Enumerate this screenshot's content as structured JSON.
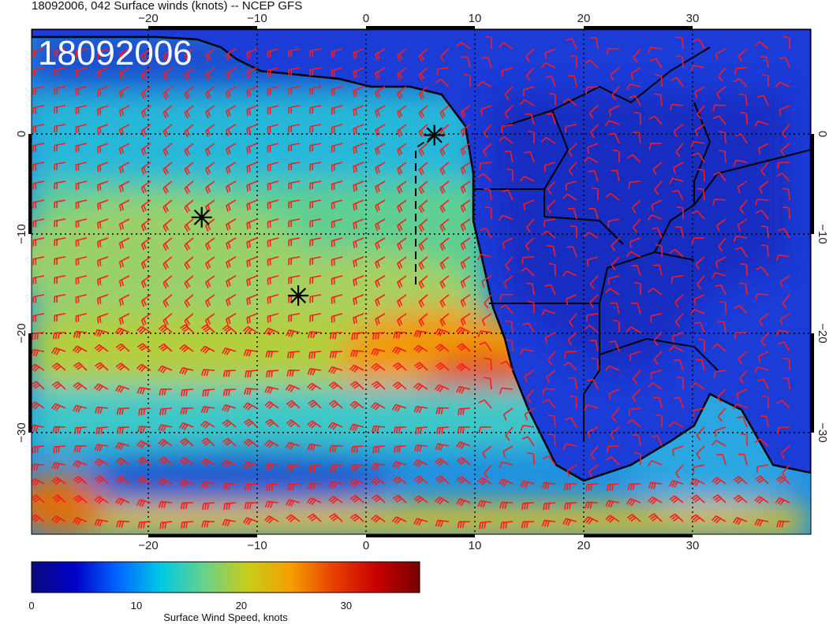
{
  "header": {
    "title": "18092006, 042 Surface winds (knots) -- NCEP GFS"
  },
  "map": {
    "stamp": "18092006",
    "lon_ticks": [
      "−20",
      "−10",
      "0",
      "10",
      "20",
      "30"
    ],
    "lat_ticks": [
      "0",
      "−10",
      "−20",
      "−30"
    ],
    "lon_range": [
      -30,
      41
    ],
    "lat_range": [
      -40,
      11
    ],
    "colors": {
      "land_border": "#000000",
      "barb": "#ff1a1a",
      "graticule": "#000000"
    },
    "markers": [
      {
        "lon": -14.5,
        "lat": -8.0
      },
      {
        "lon": -5.7,
        "lat": -15.9
      },
      {
        "lon": 6.7,
        "lat": 0.3
      }
    ],
    "track": [
      {
        "lon": 6.7,
        "lat": 0.3
      },
      {
        "lon": 5.0,
        "lat": -1.0
      },
      {
        "lon": 5.0,
        "lat": -15.0
      }
    ]
  },
  "colorbar": {
    "ticks": [
      "0",
      "10",
      "20",
      "30"
    ],
    "tick_values": [
      0,
      10,
      20,
      30
    ],
    "range": [
      0,
      37
    ],
    "label": "Surface Wind Speed, knots",
    "stops": [
      "#0a0a80",
      "#0000c8",
      "#0066ff",
      "#00c8e6",
      "#66d28c",
      "#c8cd19",
      "#f5a000",
      "#e84000",
      "#c80000",
      "#780000"
    ]
  }
}
